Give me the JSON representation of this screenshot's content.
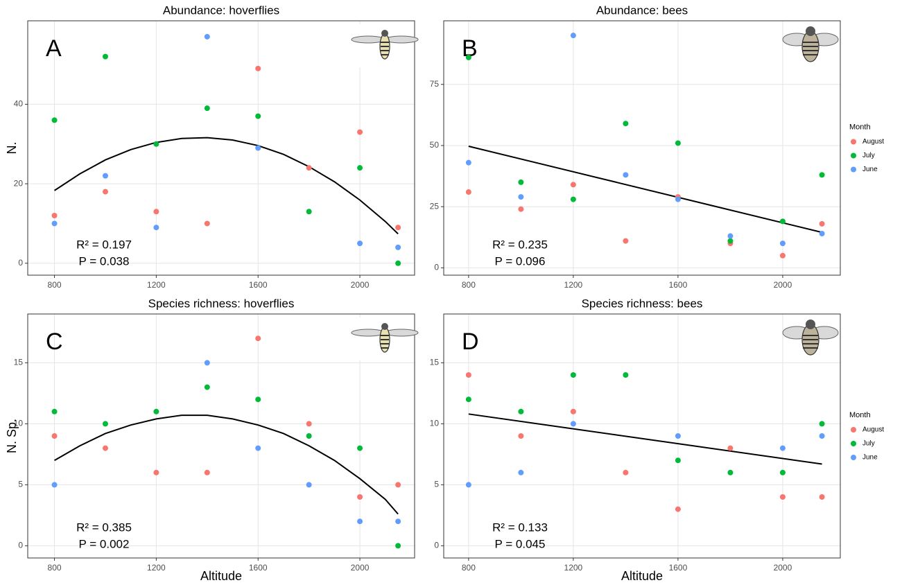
{
  "chart_data": [
    {
      "type": "scatter",
      "title": "Abundance: hoverflies",
      "panel_label": "A",
      "y_label": "N.",
      "x": [
        800,
        1000,
        1200,
        1400,
        1600,
        1800,
        2000,
        2150
      ],
      "series": [
        {
          "name": "August",
          "color": "#F8766D",
          "values": [
            12,
            18,
            13,
            10,
            49,
            24,
            33,
            9
          ]
        },
        {
          "name": "July",
          "color": "#00BA38",
          "values": [
            36,
            52,
            30,
            39,
            37,
            13,
            24,
            0
          ]
        },
        {
          "name": "June",
          "color": "#619CFF",
          "values": [
            10,
            22,
            9,
            57,
            29,
            null,
            5,
            4
          ]
        }
      ],
      "fit": {
        "x": [
          800,
          900,
          1000,
          1100,
          1200,
          1300,
          1400,
          1500,
          1600,
          1700,
          1800,
          1900,
          2000,
          2100,
          2150
        ],
        "values": [
          18.3,
          22.5,
          26.0,
          28.6,
          30.4,
          31.4,
          31.6,
          31.0,
          29.6,
          27.4,
          24.3,
          20.5,
          15.9,
          10.5,
          7.4
        ]
      },
      "annotations": [
        "R² = 0.197",
        "P = 0.038"
      ],
      "xlim": [
        695,
        2215
      ],
      "ylim": [
        -3,
        61
      ],
      "xticks": [
        800,
        1200,
        1600,
        2000
      ],
      "yticks": [
        0,
        20,
        40
      ],
      "grid": true
    },
    {
      "type": "scatter",
      "title": "Abundance: bees",
      "panel_label": "B",
      "x": [
        800,
        1000,
        1200,
        1400,
        1600,
        1800,
        2000,
        2150
      ],
      "series": [
        {
          "name": "August",
          "color": "#F8766D",
          "values": [
            31,
            24,
            34,
            11,
            29,
            10,
            5,
            18
          ]
        },
        {
          "name": "July",
          "color": "#00BA38",
          "values": [
            86,
            35,
            28,
            59,
            51,
            11,
            19,
            38
          ]
        },
        {
          "name": "June",
          "color": "#619CFF",
          "values": [
            43,
            29,
            95,
            38,
            28,
            13,
            10,
            14
          ]
        }
      ],
      "fit": {
        "x": [
          800,
          2150
        ],
        "values": [
          49.7,
          14.5
        ]
      },
      "annotations": [
        "R² = 0.235",
        "P = 0.096"
      ],
      "xlim": [
        705,
        2220
      ],
      "ylim": [
        -3,
        101
      ],
      "xticks": [
        800,
        1200,
        1600,
        2000
      ],
      "yticks": [
        0,
        25,
        50,
        75
      ],
      "grid": true,
      "legend": "right",
      "legend_title": "Month"
    },
    {
      "type": "scatter",
      "title": "Species richness: hoverflies",
      "panel_label": "C",
      "y_label": "N. Sp.",
      "x_label": "Altitude",
      "x": [
        800,
        1000,
        1200,
        1400,
        1600,
        1800,
        2000,
        2150
      ],
      "series": [
        {
          "name": "August",
          "color": "#F8766D",
          "values": [
            9,
            8,
            6,
            6,
            17,
            10,
            4,
            5
          ]
        },
        {
          "name": "July",
          "color": "#00BA38",
          "values": [
            11,
            10,
            11,
            13,
            12,
            9,
            8,
            0
          ]
        },
        {
          "name": "June",
          "color": "#619CFF",
          "values": [
            5,
            null,
            null,
            15,
            8,
            5,
            2,
            2
          ]
        }
      ],
      "fit": {
        "x": [
          800,
          900,
          1000,
          1100,
          1200,
          1300,
          1400,
          1500,
          1600,
          1700,
          1800,
          1900,
          2000,
          2100,
          2150
        ],
        "values": [
          7.0,
          8.2,
          9.2,
          9.9,
          10.4,
          10.7,
          10.7,
          10.4,
          9.9,
          9.2,
          8.2,
          7.0,
          5.5,
          3.8,
          2.6
        ]
      },
      "annotations": [
        "R² = 0.385",
        "P = 0.002"
      ],
      "xlim": [
        695,
        2215
      ],
      "ylim": [
        -1,
        19
      ],
      "xticks": [
        800,
        1200,
        1600,
        2000
      ],
      "yticks": [
        0,
        5,
        10,
        15
      ],
      "grid": true
    },
    {
      "type": "scatter",
      "title": "Species richness: bees",
      "panel_label": "D",
      "x_label": "Altitude",
      "x": [
        800,
        1000,
        1200,
        1400,
        1600,
        1800,
        2000,
        2150
      ],
      "series": [
        {
          "name": "August",
          "color": "#F8766D",
          "values": [
            14,
            9,
            11,
            6,
            3,
            8,
            4,
            4
          ]
        },
        {
          "name": "July",
          "color": "#00BA38",
          "values": [
            12,
            11,
            14,
            14,
            7,
            6,
            6,
            10
          ]
        },
        {
          "name": "June",
          "color": "#619CFF",
          "values": [
            5,
            6,
            10,
            null,
            9,
            null,
            8,
            9
          ]
        }
      ],
      "fit": {
        "x": [
          800,
          2150
        ],
        "values": [
          10.8,
          6.7
        ]
      },
      "annotations": [
        "R² = 0.133",
        "P = 0.045"
      ],
      "xlim": [
        705,
        2220
      ],
      "ylim": [
        -1,
        19
      ],
      "xticks": [
        800,
        1200,
        1600,
        2000
      ],
      "yticks": [
        0,
        5,
        10,
        15
      ],
      "grid": true,
      "legend": "right",
      "legend_title": "Month"
    }
  ]
}
